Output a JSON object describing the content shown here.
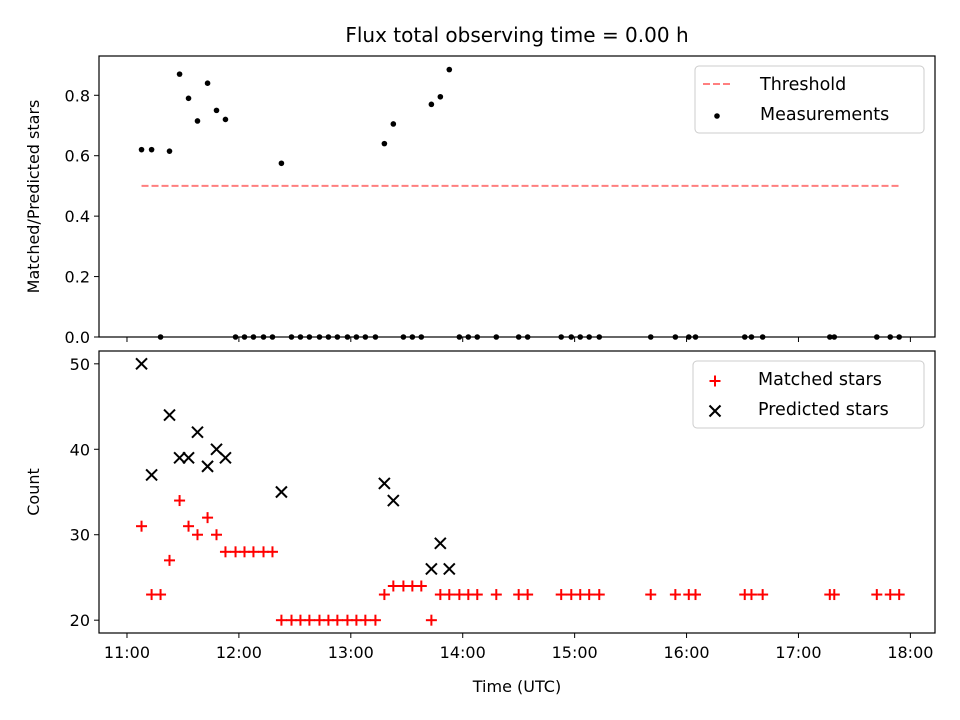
{
  "title": "Flux total observing time = 0.00 h",
  "x_axis": {
    "label": "Time (UTC)",
    "ticks": [
      "11:00",
      "12:00",
      "13:00",
      "14:00",
      "15:00",
      "16:00",
      "17:00",
      "18:00"
    ],
    "tick_values": [
      11,
      12,
      13,
      14,
      15,
      16,
      17,
      18
    ],
    "range": [
      10.75,
      18.22
    ]
  },
  "colors": {
    "threshold": "#ff7f7f",
    "measurements": "#000000",
    "matched": "#ff0000",
    "predicted": "#000000"
  },
  "chart_data": [
    {
      "type": "scatter",
      "panel": "top",
      "ylabel": "Matched/Predicted stars",
      "ylim": [
        0,
        0.93
      ],
      "yticks": [
        "0.0",
        "0.2",
        "0.4",
        "0.6",
        "0.8"
      ],
      "ytick_values": [
        0,
        0.2,
        0.4,
        0.6,
        0.8
      ],
      "legend": {
        "position": "upper right",
        "entries": [
          "Threshold",
          "Measurements"
        ]
      },
      "threshold": {
        "name": "Threshold",
        "y": 0.5,
        "x_range": [
          11.13,
          17.92
        ],
        "style": "dashed"
      },
      "series": [
        {
          "name": "Measurements",
          "marker": "dot",
          "x": [
            11.13,
            11.22,
            11.3,
            11.38,
            11.47,
            11.55,
            11.63,
            11.72,
            11.8,
            11.88,
            11.97,
            12.05,
            12.13,
            12.22,
            12.3,
            12.38,
            12.47,
            12.55,
            12.63,
            12.72,
            12.8,
            12.88,
            12.97,
            13.05,
            13.13,
            13.22,
            13.3,
            13.38,
            13.47,
            13.55,
            13.63,
            13.72,
            13.8,
            13.88,
            13.97,
            14.05,
            14.13,
            14.3,
            14.5,
            14.58,
            14.88,
            14.97,
            15.05,
            15.13,
            15.22,
            15.68,
            15.9,
            16.02,
            16.08,
            16.52,
            16.58,
            16.68,
            17.28,
            17.32,
            17.7,
            17.82,
            17.9
          ],
          "y": [
            0.62,
            0.62,
            0,
            0.615,
            0.87,
            0.79,
            0.715,
            0.84,
            0.75,
            0.72,
            0,
            0,
            0,
            0,
            0,
            0.575,
            0,
            0,
            0,
            0,
            0,
            0,
            0,
            0,
            0,
            0,
            0.64,
            0.705,
            0,
            0,
            0,
            0.77,
            0.795,
            0.885,
            0,
            0,
            0,
            0,
            0,
            0,
            0,
            0,
            0,
            0,
            0,
            0,
            0,
            0,
            0,
            0,
            0,
            0,
            0,
            0,
            0,
            0,
            0
          ]
        }
      ]
    },
    {
      "type": "scatter",
      "panel": "bottom",
      "ylabel": "Count",
      "ylim": [
        18.5,
        51.5
      ],
      "yticks": [
        "20",
        "30",
        "40",
        "50"
      ],
      "ytick_values": [
        20,
        30,
        40,
        50
      ],
      "xlabel": "Time (UTC)",
      "legend": {
        "position": "upper right",
        "entries": [
          "Matched stars",
          "Predicted stars"
        ]
      },
      "series": [
        {
          "name": "Matched stars",
          "marker": "plus",
          "x": [
            11.13,
            11.22,
            11.3,
            11.38,
            11.47,
            11.55,
            11.63,
            11.72,
            11.8,
            11.88,
            11.97,
            12.05,
            12.13,
            12.22,
            12.3,
            12.38,
            12.47,
            12.55,
            12.63,
            12.72,
            12.8,
            12.88,
            12.97,
            13.05,
            13.13,
            13.22,
            13.3,
            13.38,
            13.47,
            13.55,
            13.63,
            13.72,
            13.8,
            13.88,
            13.97,
            14.05,
            14.13,
            14.3,
            14.5,
            14.58,
            14.88,
            14.97,
            15.05,
            15.13,
            15.22,
            15.68,
            15.9,
            16.02,
            16.08,
            16.52,
            16.58,
            16.68,
            17.28,
            17.32,
            17.7,
            17.82,
            17.9
          ],
          "y": [
            31,
            23,
            23,
            27,
            34,
            31,
            30,
            32,
            30,
            28,
            28,
            28,
            28,
            28,
            28,
            20,
            20,
            20,
            20,
            20,
            20,
            20,
            20,
            20,
            20,
            20,
            23,
            24,
            24,
            24,
            24,
            20,
            23,
            23,
            23,
            23,
            23,
            23,
            23,
            23,
            23,
            23,
            23,
            23,
            23,
            23,
            23,
            23,
            23,
            23,
            23,
            23,
            23,
            23,
            23,
            23,
            23
          ]
        },
        {
          "name": "Predicted stars",
          "marker": "x",
          "x": [
            11.13,
            11.22,
            11.38,
            11.47,
            11.55,
            11.63,
            11.72,
            11.8,
            11.88,
            12.38,
            13.3,
            13.38,
            13.72,
            13.8,
            13.88
          ],
          "y": [
            50,
            37,
            44,
            39,
            39,
            42,
            38,
            40,
            39,
            35,
            36,
            34,
            26,
            29,
            26
          ]
        }
      ]
    }
  ]
}
